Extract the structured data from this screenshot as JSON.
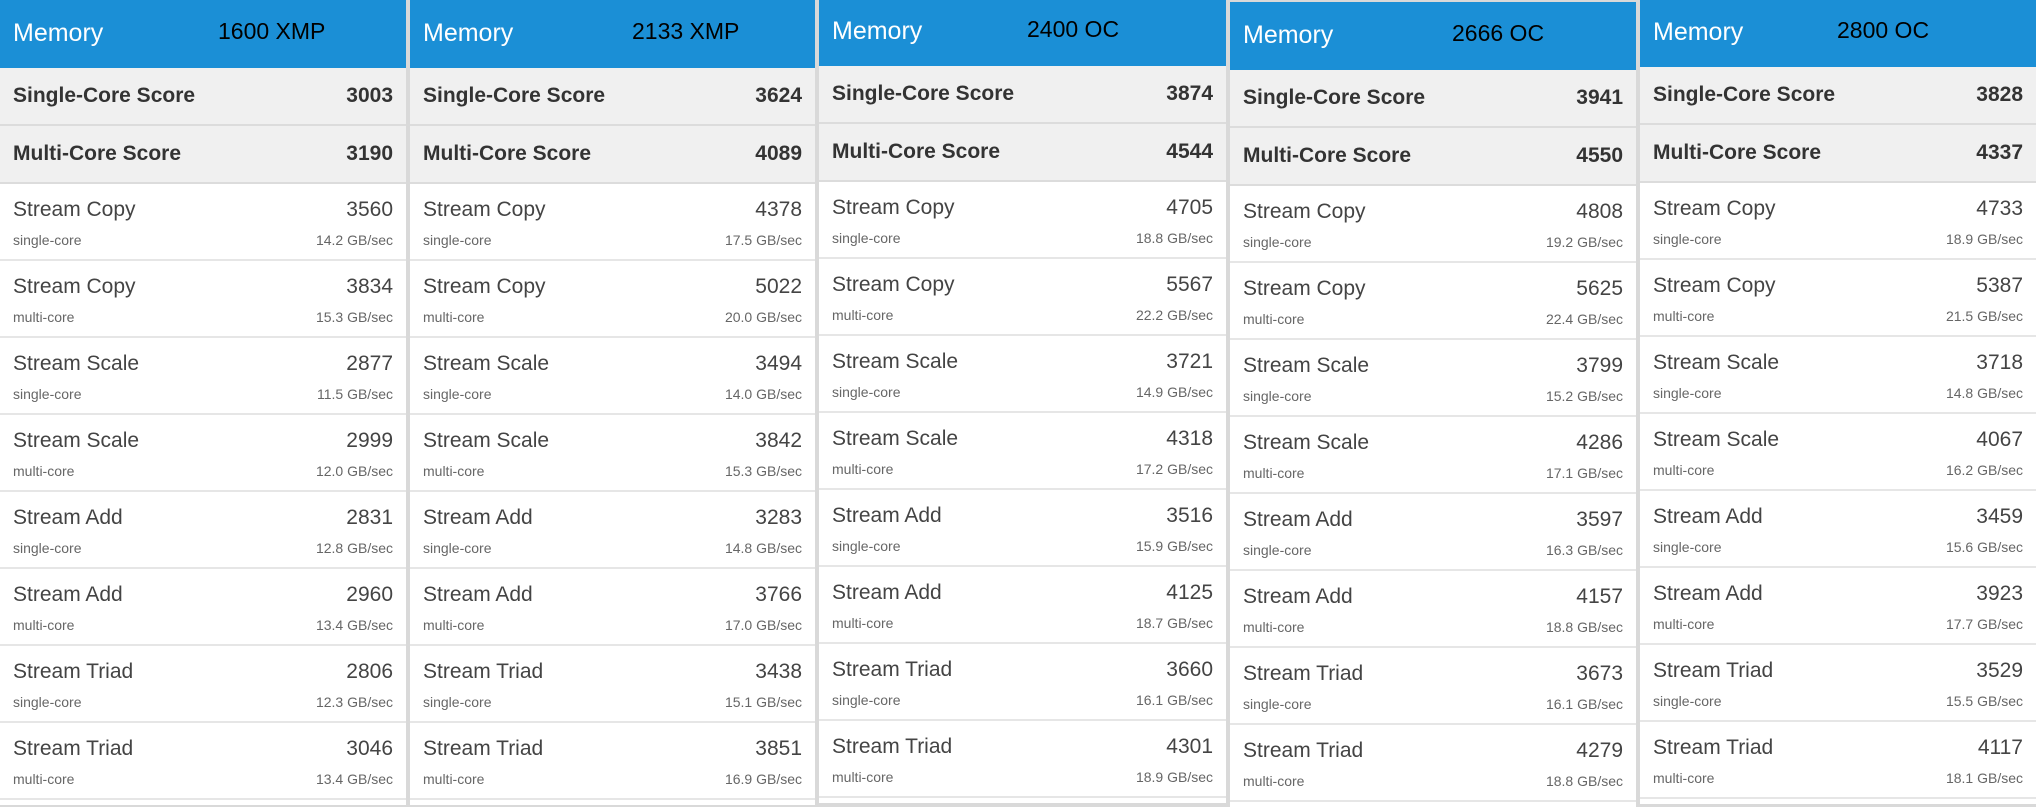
{
  "panels": [
    {
      "title": "Memory",
      "speed": "1600 XMP",
      "single_label": "Single-Core Score",
      "single": "3003",
      "multi_label": "Multi-Core Score",
      "multi": "3190",
      "rows": [
        {
          "name": "Stream Copy",
          "score": "3560",
          "core": "single-core",
          "rate": "14.2 GB/sec"
        },
        {
          "name": "Stream Copy",
          "score": "3834",
          "core": "multi-core",
          "rate": "15.3 GB/sec"
        },
        {
          "name": "Stream Scale",
          "score": "2877",
          "core": "single-core",
          "rate": "11.5 GB/sec"
        },
        {
          "name": "Stream Scale",
          "score": "2999",
          "core": "multi-core",
          "rate": "12.0 GB/sec"
        },
        {
          "name": "Stream Add",
          "score": "2831",
          "core": "single-core",
          "rate": "12.8 GB/sec"
        },
        {
          "name": "Stream Add",
          "score": "2960",
          "core": "multi-core",
          "rate": "13.4 GB/sec"
        },
        {
          "name": "Stream Triad",
          "score": "2806",
          "core": "single-core",
          "rate": "12.3 GB/sec"
        },
        {
          "name": "Stream Triad",
          "score": "3046",
          "core": "multi-core",
          "rate": "13.4 GB/sec"
        }
      ]
    },
    {
      "title": "Memory",
      "speed": "2133 XMP",
      "single_label": "Single-Core Score",
      "single": "3624",
      "multi_label": "Multi-Core Score",
      "multi": "4089",
      "rows": [
        {
          "name": "Stream Copy",
          "score": "4378",
          "core": "single-core",
          "rate": "17.5 GB/sec"
        },
        {
          "name": "Stream Copy",
          "score": "5022",
          "core": "multi-core",
          "rate": "20.0 GB/sec"
        },
        {
          "name": "Stream Scale",
          "score": "3494",
          "core": "single-core",
          "rate": "14.0 GB/sec"
        },
        {
          "name": "Stream Scale",
          "score": "3842",
          "core": "multi-core",
          "rate": "15.3 GB/sec"
        },
        {
          "name": "Stream Add",
          "score": "3283",
          "core": "single-core",
          "rate": "14.8 GB/sec"
        },
        {
          "name": "Stream Add",
          "score": "3766",
          "core": "multi-core",
          "rate": "17.0 GB/sec"
        },
        {
          "name": "Stream Triad",
          "score": "3438",
          "core": "single-core",
          "rate": "15.1 GB/sec"
        },
        {
          "name": "Stream Triad",
          "score": "3851",
          "core": "multi-core",
          "rate": "16.9 GB/sec"
        }
      ]
    },
    {
      "title": "Memory",
      "speed": "2400 OC",
      "single_label": "Single-Core Score",
      "single": "3874",
      "multi_label": "Multi-Core Score",
      "multi": "4544",
      "rows": [
        {
          "name": "Stream Copy",
          "score": "4705",
          "core": "single-core",
          "rate": "18.8 GB/sec"
        },
        {
          "name": "Stream Copy",
          "score": "5567",
          "core": "multi-core",
          "rate": "22.2 GB/sec"
        },
        {
          "name": "Stream Scale",
          "score": "3721",
          "core": "single-core",
          "rate": "14.9 GB/sec"
        },
        {
          "name": "Stream Scale",
          "score": "4318",
          "core": "multi-core",
          "rate": "17.2 GB/sec"
        },
        {
          "name": "Stream Add",
          "score": "3516",
          "core": "single-core",
          "rate": "15.9 GB/sec"
        },
        {
          "name": "Stream Add",
          "score": "4125",
          "core": "multi-core",
          "rate": "18.7 GB/sec"
        },
        {
          "name": "Stream Triad",
          "score": "3660",
          "core": "single-core",
          "rate": "16.1 GB/sec"
        },
        {
          "name": "Stream Triad",
          "score": "4301",
          "core": "multi-core",
          "rate": "18.9 GB/sec"
        }
      ]
    },
    {
      "title": "Memory",
      "speed": "2666 OC",
      "single_label": "Single-Core Score",
      "single": "3941",
      "multi_label": "Multi-Core Score",
      "multi": "4550",
      "rows": [
        {
          "name": "Stream Copy",
          "score": "4808",
          "core": "single-core",
          "rate": "19.2 GB/sec"
        },
        {
          "name": "Stream Copy",
          "score": "5625",
          "core": "multi-core",
          "rate": "22.4 GB/sec"
        },
        {
          "name": "Stream Scale",
          "score": "3799",
          "core": "single-core",
          "rate": "15.2 GB/sec"
        },
        {
          "name": "Stream Scale",
          "score": "4286",
          "core": "multi-core",
          "rate": "17.1 GB/sec"
        },
        {
          "name": "Stream Add",
          "score": "3597",
          "core": "single-core",
          "rate": "16.3 GB/sec"
        },
        {
          "name": "Stream Add",
          "score": "4157",
          "core": "multi-core",
          "rate": "18.8 GB/sec"
        },
        {
          "name": "Stream Triad",
          "score": "3673",
          "core": "single-core",
          "rate": "16.1 GB/sec"
        },
        {
          "name": "Stream Triad",
          "score": "4279",
          "core": "multi-core",
          "rate": "18.8 GB/sec"
        }
      ]
    },
    {
      "title": "Memory",
      "speed": "2800 OC",
      "single_label": "Single-Core Score",
      "single": "3828",
      "multi_label": "Multi-Core Score",
      "multi": "4337",
      "rows": [
        {
          "name": "Stream Copy",
          "score": "4733",
          "core": "single-core",
          "rate": "18.9 GB/sec"
        },
        {
          "name": "Stream Copy",
          "score": "5387",
          "core": "multi-core",
          "rate": "21.5 GB/sec"
        },
        {
          "name": "Stream Scale",
          "score": "3718",
          "core": "single-core",
          "rate": "14.8 GB/sec"
        },
        {
          "name": "Stream Scale",
          "score": "4067",
          "core": "multi-core",
          "rate": "16.2 GB/sec"
        },
        {
          "name": "Stream Add",
          "score": "3459",
          "core": "single-core",
          "rate": "15.6 GB/sec"
        },
        {
          "name": "Stream Add",
          "score": "3923",
          "core": "multi-core",
          "rate": "17.7 GB/sec"
        },
        {
          "name": "Stream Triad",
          "score": "3529",
          "core": "single-core",
          "rate": "15.5 GB/sec"
        },
        {
          "name": "Stream Triad",
          "score": "4117",
          "core": "multi-core",
          "rate": "18.1 GB/sec"
        }
      ]
    }
  ]
}
